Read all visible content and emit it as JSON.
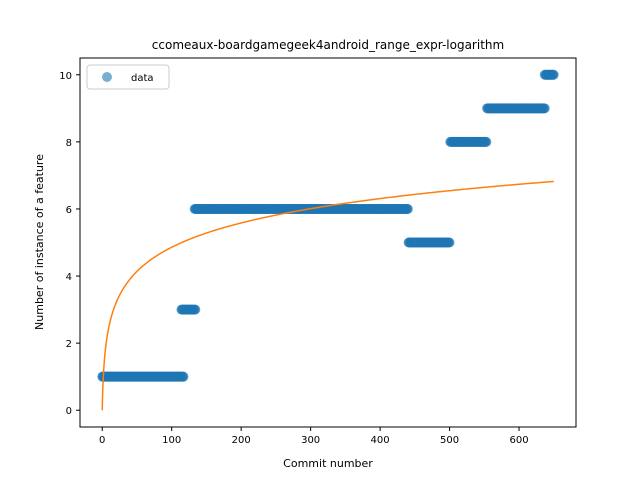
{
  "chart_data": {
    "type": "scatter",
    "title": "ccomeaux-boardgamegeek4android_range_expr-logarithm",
    "xlabel": "Commit number",
    "ylabel": "Number of instance of a feature",
    "xlim": [
      -32,
      682
    ],
    "ylim": [
      -0.5,
      10.5
    ],
    "xticks": [
      0,
      100,
      200,
      300,
      400,
      500,
      600
    ],
    "yticks": [
      0,
      2,
      4,
      6,
      8,
      10
    ],
    "grid": false,
    "legend": {
      "position": "top-left",
      "entries": [
        "data"
      ]
    },
    "colors": {
      "data": "#1f77b4",
      "fit": "#ff7f0e"
    },
    "series": [
      {
        "name": "data",
        "kind": "scatter",
        "segments": [
          {
            "x_start": 0,
            "x_end": 117,
            "y": 1
          },
          {
            "x_start": 114,
            "x_end": 134,
            "y": 3
          },
          {
            "x_start": 133,
            "x_end": 440,
            "y": 6
          },
          {
            "x_start": 441,
            "x_end": 500,
            "y": 5
          },
          {
            "x_start": 501,
            "x_end": 553,
            "y": 8
          },
          {
            "x_start": 554,
            "x_end": 637,
            "y": 9
          },
          {
            "x_start": 637,
            "x_end": 650,
            "y": 10
          }
        ]
      },
      {
        "kind": "line",
        "function": "logarithm",
        "x_range": [
          0,
          650
        ],
        "y_start": 0,
        "y_end": 6.82
      }
    ]
  }
}
